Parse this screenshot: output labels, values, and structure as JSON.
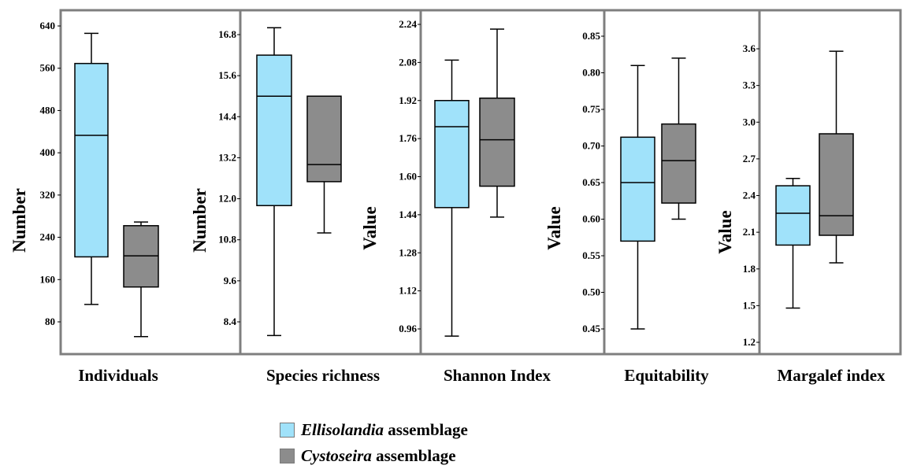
{
  "colors": {
    "ellisolandia": "#a0e2fa",
    "cystoseira": "#8c8c8c",
    "frame": "#7f7f7f"
  },
  "legend": [
    {
      "name_italic": "Ellisolandia",
      "suffix": " assemblage",
      "color": "#a0e2fa"
    },
    {
      "name_italic": "Cystoseira",
      "suffix": " assemblage",
      "color": "#8c8c8c"
    }
  ],
  "chart_data": [
    {
      "type": "box",
      "xlabel": "Individuals",
      "ylabel": "Number",
      "yticks": [
        80,
        160,
        240,
        320,
        400,
        480,
        560,
        640
      ],
      "tick_labels": [
        "80",
        "160",
        "240",
        "320",
        "400",
        "480",
        "560",
        "640"
      ],
      "series": [
        {
          "name": "Ellisolandia assemblage",
          "min": 113,
          "q1": 203,
          "median": 433,
          "q3": 569,
          "max": 626
        },
        {
          "name": "Cystoseira assemblage",
          "min": 52,
          "q1": 146,
          "median": 205,
          "q3": 262,
          "max": 269
        }
      ]
    },
    {
      "type": "box",
      "xlabel": "Species richness",
      "ylabel": "Number",
      "yticks": [
        8.4,
        9.6,
        10.8,
        12.0,
        13.2,
        14.4,
        15.6,
        16.8
      ],
      "tick_labels": [
        "8.4",
        "9.6",
        "10.8",
        "12.0",
        "13.2",
        "14.4",
        "15.6",
        "16.8"
      ],
      "series": [
        {
          "name": "Ellisolandia assemblage",
          "min": 8.0,
          "q1": 11.8,
          "median": 15.0,
          "q3": 16.2,
          "max": 17.0
        },
        {
          "name": "Cystoseira assemblage",
          "min": 11.0,
          "q1": 12.5,
          "median": 13.0,
          "q3": 15.0,
          "max": 15.0
        }
      ]
    },
    {
      "type": "box",
      "xlabel": "Shannon Index",
      "ylabel": "Value",
      "yticks": [
        0.96,
        1.12,
        1.28,
        1.44,
        1.6,
        1.76,
        1.92,
        2.08,
        2.24
      ],
      "tick_labels": [
        "0.96",
        "1.12",
        "1.28",
        "1.44",
        "1.60",
        "1.76",
        "1.92",
        "2.08",
        "2.24"
      ],
      "series": [
        {
          "name": "Ellisolandia assemblage",
          "min": 0.93,
          "q1": 1.47,
          "median": 1.81,
          "q3": 1.92,
          "max": 2.09
        },
        {
          "name": "Cystoseira assemblage",
          "min": 1.43,
          "q1": 1.56,
          "median": 1.755,
          "q3": 1.93,
          "max": 2.22
        }
      ]
    },
    {
      "type": "box",
      "xlabel": "Equitability",
      "ylabel": "Value",
      "yticks": [
        0.45,
        0.5,
        0.55,
        0.6,
        0.65,
        0.7,
        0.75,
        0.8,
        0.85
      ],
      "tick_labels": [
        "0.45",
        "0.50",
        "0.55",
        "0.60",
        "0.65",
        "0.70",
        "0.75",
        "0.80",
        "0.85"
      ],
      "series": [
        {
          "name": "Ellisolandia assemblage",
          "min": 0.45,
          "q1": 0.57,
          "median": 0.65,
          "q3": 0.712,
          "max": 0.81
        },
        {
          "name": "Cystoseira assemblage",
          "min": 0.6,
          "q1": 0.622,
          "median": 0.68,
          "q3": 0.73,
          "max": 0.82
        }
      ]
    },
    {
      "type": "box",
      "xlabel": "Margalef index",
      "ylabel": "Value",
      "yticks": [
        1.2,
        1.5,
        1.8,
        2.1,
        2.4,
        2.7,
        3.0,
        3.3,
        3.6
      ],
      "tick_labels": [
        "1.2",
        "1.5",
        "1.8",
        "2.1",
        "2.4",
        "2.7",
        "3.0",
        "3.3",
        "3.6"
      ],
      "series": [
        {
          "name": "Ellisolandia assemblage",
          "min": 1.48,
          "q1": 1.995,
          "median": 2.255,
          "q3": 2.48,
          "max": 2.54
        },
        {
          "name": "Cystoseira assemblage",
          "min": 1.85,
          "q1": 2.075,
          "median": 2.235,
          "q3": 2.905,
          "max": 3.58
        }
      ]
    }
  ]
}
